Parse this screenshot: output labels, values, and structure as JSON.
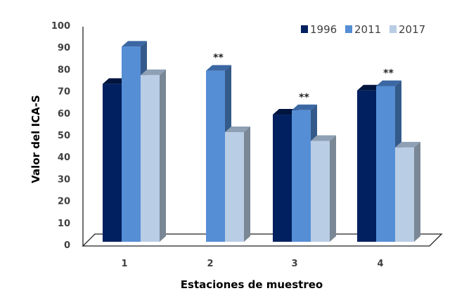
{
  "chart_data": {
    "type": "bar",
    "style": "3d-clustered-column",
    "title": "",
    "xlabel": "Estaciones de muestreo",
    "ylabel": "Valor del ICA-S",
    "ylim": [
      0,
      100
    ],
    "yticks": [
      0,
      10,
      20,
      30,
      40,
      50,
      60,
      70,
      80,
      90,
      100
    ],
    "categories": [
      "1",
      "2",
      "3",
      "4"
    ],
    "series": [
      {
        "name": "1996",
        "color": "#002060",
        "values": [
          72,
          null,
          58,
          69
        ]
      },
      {
        "name": "2011",
        "color": "#558ED5",
        "values": [
          89,
          78,
          60,
          71
        ]
      },
      {
        "name": "2017",
        "color": "#B9CDE5",
        "values": [
          76,
          50,
          46,
          43
        ]
      }
    ],
    "annotations": [
      {
        "category": "2",
        "text": "**"
      },
      {
        "category": "3",
        "text": "**"
      },
      {
        "category": "4",
        "text": "**"
      }
    ],
    "legend_position": "top-right",
    "grid": false
  }
}
